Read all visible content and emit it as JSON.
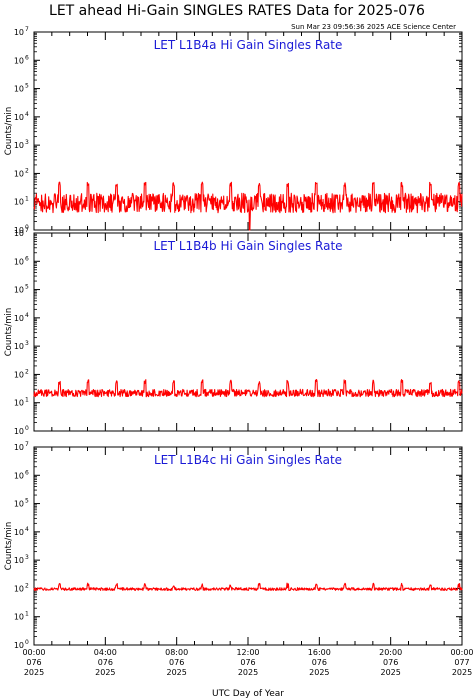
{
  "page": {
    "title": "LET ahead Hi-Gain SINGLES RATES Data for 2025-076",
    "timestamp": "Sun Mar 23 09:56:36 2025 ACE Science Center"
  },
  "chart_data": [
    {
      "type": "line",
      "title": "LET L1B4a Hi Gain Singles Rate",
      "ylabel": "Counts/min",
      "xlabel": "",
      "y_scale": "log",
      "ylim": [
        1,
        10000000
      ],
      "xlim": [
        0,
        24
      ],
      "grid": false,
      "series": [
        {
          "color": "#ff0000",
          "baseline": 9,
          "spike_value": 45,
          "spike_interval_hours": 1.6,
          "jitter_factor": 2.2,
          "dips": [
            [
              12.1,
              0.9
            ]
          ],
          "x_start": 0,
          "x_end": 24
        }
      ]
    },
    {
      "type": "line",
      "title": "LET L1B4b Hi Gain Singles Rate",
      "ylabel": "Counts/min",
      "xlabel": "",
      "y_scale": "log",
      "ylim": [
        1,
        10000000
      ],
      "xlim": [
        0,
        24
      ],
      "grid": false,
      "series": [
        {
          "color": "#ff0000",
          "baseline": 22,
          "spike_value": 60,
          "spike_interval_hours": 1.6,
          "jitter_factor": 1.35,
          "dips": [],
          "x_start": 0,
          "x_end": 24
        }
      ]
    },
    {
      "type": "line",
      "title": "LET L1B4c Hi Gain Singles Rate",
      "ylabel": "Counts/min",
      "xlabel": "UTC Day of Year",
      "y_scale": "log",
      "ylim": [
        1,
        10000000
      ],
      "xlim": [
        0,
        24
      ],
      "grid": false,
      "x_ticks": [
        {
          "x": 0,
          "time": "00:00",
          "doy": "076",
          "year": "2025"
        },
        {
          "x": 4,
          "time": "04:00",
          "doy": "076",
          "year": "2025"
        },
        {
          "x": 8,
          "time": "08:00",
          "doy": "076",
          "year": "2025"
        },
        {
          "x": 12,
          "time": "12:00",
          "doy": "076",
          "year": "2025"
        },
        {
          "x": 16,
          "time": "16:00",
          "doy": "076",
          "year": "2025"
        },
        {
          "x": 20,
          "time": "20:00",
          "doy": "076",
          "year": "2025"
        },
        {
          "x": 24,
          "time": "00:00",
          "doy": "077",
          "year": "2025"
        }
      ],
      "series": [
        {
          "color": "#ff0000",
          "baseline": 95,
          "spike_value": 140,
          "spike_interval_hours": 1.6,
          "jitter_factor": 1.12,
          "dips": [],
          "x_start": 0,
          "x_end": 24
        }
      ]
    }
  ]
}
